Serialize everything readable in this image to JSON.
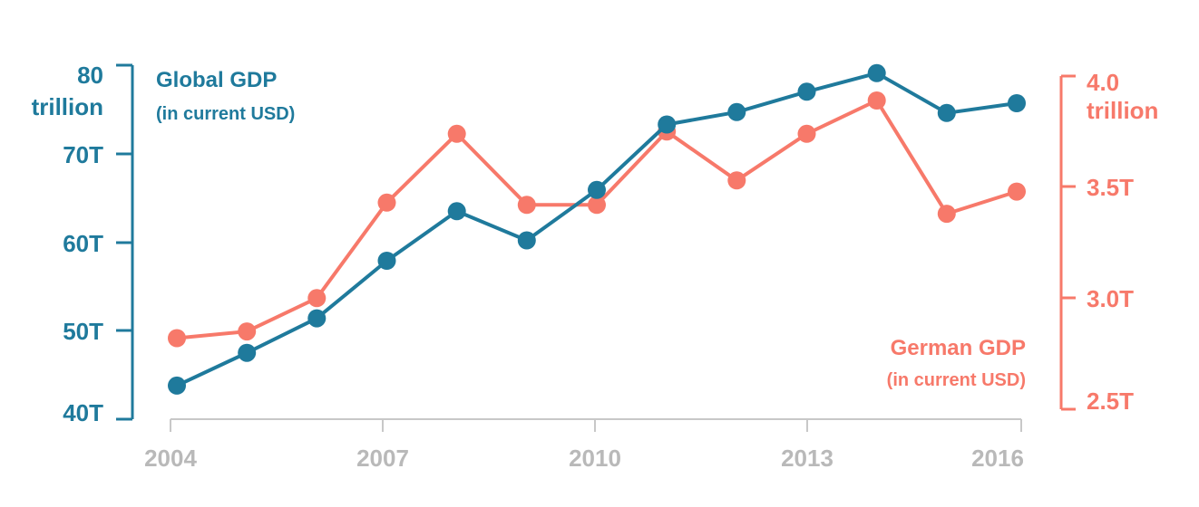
{
  "chart_data": {
    "type": "line",
    "x": [
      2004,
      2005,
      2006,
      2007,
      2008,
      2009,
      2010,
      2011,
      2012,
      2013,
      2014,
      2015,
      2016
    ],
    "x_tick_labels": [
      "2004",
      "2007",
      "2010",
      "2013",
      "2016"
    ],
    "x_tick_values": [
      2004,
      2007,
      2010,
      2013,
      2016
    ],
    "series": [
      {
        "name": "Global GDP",
        "axis": "left",
        "color": "#1f7a9c",
        "values": [
          43.8,
          47.5,
          51.4,
          57.9,
          63.5,
          60.2,
          65.9,
          73.3,
          74.7,
          77.0,
          79.1,
          74.6,
          75.7
        ]
      },
      {
        "name": "German GDP",
        "axis": "right",
        "color": "#f7796a",
        "values": [
          2.82,
          2.85,
          3.0,
          3.43,
          3.74,
          3.42,
          3.42,
          3.75,
          3.53,
          3.74,
          3.89,
          3.38,
          3.48
        ]
      }
    ],
    "left_axis": {
      "ylim": [
        40,
        80
      ],
      "ticks": [
        {
          "value": 80,
          "label": "80"
        },
        {
          "value": 70,
          "label": "70T"
        },
        {
          "value": 60,
          "label": "60T"
        },
        {
          "value": 50,
          "label": "50T"
        },
        {
          "value": 40,
          "label": "40T"
        }
      ],
      "top_unit": "trillion",
      "title": "Global GDP",
      "subtitle": "(in current USD)"
    },
    "right_axis": {
      "ylim": [
        2.45,
        4.1
      ],
      "ticks": [
        {
          "value": 4.0,
          "label": "4.0"
        },
        {
          "value": 3.5,
          "label": "3.5T"
        },
        {
          "value": 3.0,
          "label": "3.0T"
        },
        {
          "value": 2.5,
          "label": "2.5T"
        }
      ],
      "top_unit": "trillion",
      "title": "German GDP",
      "subtitle": "(in current USD)"
    },
    "grid": false
  }
}
